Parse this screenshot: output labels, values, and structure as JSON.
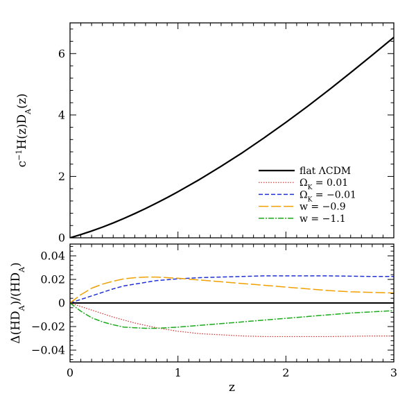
{
  "chart_data": [
    {
      "type": "line",
      "id": "top",
      "xlabel": "",
      "ylabel_html": "c<tspan baseline-shift='super' font-size='11'>−1</tspan>H(z)D<tspan baseline-shift='sub' font-size='11'>A</tspan>(z)",
      "ylabel": "c−1H(z)DA(z)",
      "xlim": [
        0,
        3
      ],
      "ylim": [
        0,
        7
      ],
      "yticks": [
        0,
        2,
        4,
        6
      ],
      "ytick_labels": [
        "0",
        "2",
        "4",
        "6"
      ],
      "legend_position": "lower-right",
      "series": [
        {
          "name": "flat ΛCDM",
          "name_html": "flat ΛCDM",
          "color": "#000000",
          "dash": "none",
          "width": 2.2,
          "x": [
            0,
            0.1,
            0.2,
            0.3,
            0.4,
            0.5,
            0.6,
            0.7,
            0.8,
            0.9,
            1.0,
            1.2,
            1.4,
            1.6,
            1.8,
            2.0,
            2.2,
            2.4,
            2.6,
            2.8,
            3.0
          ],
          "y": [
            0,
            0.105,
            0.221,
            0.347,
            0.484,
            0.632,
            0.789,
            0.955,
            1.13,
            1.31,
            1.5,
            1.9,
            2.33,
            2.78,
            3.26,
            3.76,
            4.28,
            4.82,
            5.38,
            5.95,
            6.53
          ]
        },
        {
          "name": "ΩK = 0.01",
          "name_html": "Ω<tspan baseline-shift='sub' font-size='9'>K</tspan> = 0.01",
          "color": "#d62020",
          "dash": "1.5,2",
          "width": 1.2
        },
        {
          "name": "ΩK = −0.01",
          "name_html": "Ω<tspan baseline-shift='sub' font-size='9'>K</tspan> = −0.01",
          "color": "#1f2fd6",
          "dash": "6,3",
          "width": 1.5
        },
        {
          "name": "w = −0.9",
          "name_html": "w = −0.9",
          "color": "#f0a000",
          "dash": "14,4",
          "width": 1.5
        },
        {
          "name": "w = −1.1",
          "name_html": "w = −1.1",
          "color": "#1aaa1a",
          "dash": "8,2,2,2",
          "width": 1.5
        }
      ]
    },
    {
      "type": "line",
      "id": "bottom",
      "xlabel": "z",
      "ylabel_html": "Δ(HD<tspan baseline-shift='sub' font-size='11'>A</tspan>)/(HD<tspan baseline-shift='sub' font-size='11'>A</tspan>)",
      "ylabel": "Δ(HDA)/(HDA)",
      "xlim": [
        0,
        3
      ],
      "ylim": [
        -0.05,
        0.05
      ],
      "xticks": [
        0,
        1,
        2,
        3
      ],
      "xtick_labels": [
        "0",
        "1",
        "2",
        "3"
      ],
      "yticks": [
        -0.04,
        -0.02,
        0,
        0.02,
        0.04
      ],
      "ytick_labels": [
        "−0.04",
        "−0.02",
        "0",
        "0.02",
        "0.04"
      ],
      "series": [
        {
          "name": "flat ΛCDM",
          "color": "#000000",
          "dash": "none",
          "width": 2.0,
          "x": [
            0,
            3
          ],
          "y": [
            0,
            0
          ]
        },
        {
          "name": "ΩK = 0.01",
          "color": "#d62020",
          "dash": "1.5,2",
          "width": 1.2,
          "x": [
            0,
            0.1,
            0.2,
            0.3,
            0.4,
            0.5,
            0.6,
            0.8,
            1.0,
            1.2,
            1.4,
            1.6,
            1.8,
            2.0,
            2.4,
            2.8,
            3.0
          ],
          "y": [
            0,
            -0.003,
            -0.006,
            -0.009,
            -0.012,
            -0.0145,
            -0.017,
            -0.021,
            -0.024,
            -0.026,
            -0.027,
            -0.028,
            -0.0285,
            -0.0285,
            -0.0285,
            -0.028,
            -0.028
          ]
        },
        {
          "name": "ΩK = −0.01",
          "color": "#1f2fd6",
          "dash": "6,3",
          "width": 1.5,
          "x": [
            0,
            0.1,
            0.2,
            0.3,
            0.4,
            0.5,
            0.6,
            0.8,
            1.0,
            1.2,
            1.4,
            1.6,
            1.8,
            2.0,
            2.4,
            2.8,
            3.0
          ],
          "y": [
            0,
            0.003,
            0.006,
            0.009,
            0.012,
            0.0145,
            0.016,
            0.019,
            0.0205,
            0.0215,
            0.022,
            0.0225,
            0.023,
            0.023,
            0.023,
            0.0225,
            0.0225
          ]
        },
        {
          "name": "w = −0.9",
          "color": "#f0a000",
          "dash": "14,4",
          "width": 1.5,
          "x": [
            0,
            0.1,
            0.2,
            0.3,
            0.4,
            0.5,
            0.6,
            0.7,
            0.8,
            0.9,
            1.0,
            1.2,
            1.4,
            1.6,
            1.8,
            2.0,
            2.2,
            2.4,
            2.6,
            2.8,
            3.0
          ],
          "y": [
            0,
            0.007,
            0.0125,
            0.016,
            0.0185,
            0.0205,
            0.0215,
            0.022,
            0.022,
            0.0215,
            0.021,
            0.0195,
            0.018,
            0.0165,
            0.015,
            0.0135,
            0.012,
            0.0105,
            0.0095,
            0.009,
            0.0085
          ]
        },
        {
          "name": "w = −1.1",
          "color": "#1aaa1a",
          "dash": "8,2,2,2",
          "width": 1.5,
          "x": [
            0,
            0.1,
            0.2,
            0.3,
            0.4,
            0.5,
            0.6,
            0.7,
            0.8,
            0.9,
            1.0,
            1.2,
            1.4,
            1.6,
            1.8,
            2.0,
            2.2,
            2.4,
            2.6,
            2.8,
            3.0
          ],
          "y": [
            0,
            -0.007,
            -0.0125,
            -0.016,
            -0.0185,
            -0.0205,
            -0.021,
            -0.0215,
            -0.0215,
            -0.021,
            -0.0205,
            -0.019,
            -0.0175,
            -0.016,
            -0.0145,
            -0.013,
            -0.0115,
            -0.01,
            -0.0085,
            -0.0075,
            -0.0065
          ]
        }
      ]
    }
  ]
}
